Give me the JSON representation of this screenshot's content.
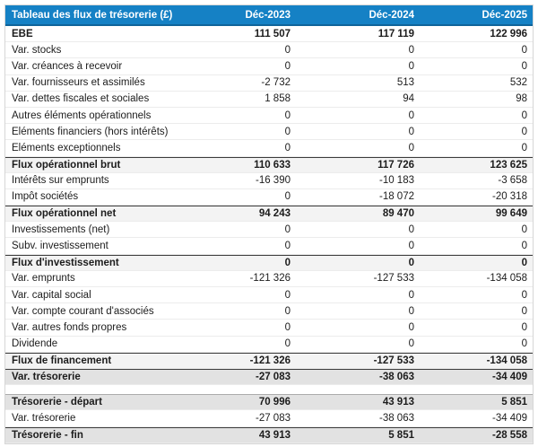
{
  "table": {
    "title": "Tableau des flux de trésorerie (£)",
    "columns": [
      "Déc-2023",
      "Déc-2024",
      "Déc-2025"
    ],
    "rows": [
      {
        "label": "EBE",
        "values": [
          "111 507",
          "117 119",
          "122 996"
        ],
        "style": "bold"
      },
      {
        "label": "Var. stocks",
        "values": [
          "0",
          "0",
          "0"
        ],
        "style": "normal"
      },
      {
        "label": "Var. créances à recevoir",
        "values": [
          "0",
          "0",
          "0"
        ],
        "style": "normal"
      },
      {
        "label": "Var. fournisseurs et assimilés",
        "values": [
          "-2 732",
          "513",
          "532"
        ],
        "style": "normal"
      },
      {
        "label": "Var. dettes fiscales et sociales",
        "values": [
          "1 858",
          "94",
          "98"
        ],
        "style": "normal"
      },
      {
        "label": "Autres éléments opérationnels",
        "values": [
          "0",
          "0",
          "0"
        ],
        "style": "normal"
      },
      {
        "label": "Eléments financiers (hors intérêts)",
        "values": [
          "0",
          "0",
          "0"
        ],
        "style": "normal"
      },
      {
        "label": "Eléments exceptionnels",
        "values": [
          "0",
          "0",
          "0"
        ],
        "style": "normal"
      },
      {
        "label": "Flux opérationnel brut",
        "values": [
          "110 633",
          "117 726",
          "123 625"
        ],
        "style": "subtotal"
      },
      {
        "label": "Intérêts sur emprunts",
        "values": [
          "-16 390",
          "-10 183",
          "-3 658"
        ],
        "style": "normal"
      },
      {
        "label": "Impôt sociétés",
        "values": [
          "0",
          "-18 072",
          "-20 318"
        ],
        "style": "normal"
      },
      {
        "label": "Flux opérationnel net",
        "values": [
          "94 243",
          "89 470",
          "99 649"
        ],
        "style": "subtotal"
      },
      {
        "label": "Investissements (net)",
        "values": [
          "0",
          "0",
          "0"
        ],
        "style": "normal"
      },
      {
        "label": "Subv. investissement",
        "values": [
          "0",
          "0",
          "0"
        ],
        "style": "normal"
      },
      {
        "label": "Flux d'investissement",
        "values": [
          "0",
          "0",
          "0"
        ],
        "style": "subtotal"
      },
      {
        "label": "Var. emprunts",
        "values": [
          "-121 326",
          "-127 533",
          "-134 058"
        ],
        "style": "normal"
      },
      {
        "label": "Var. capital social",
        "values": [
          "0",
          "0",
          "0"
        ],
        "style": "normal"
      },
      {
        "label": "Var. compte courant d'associés",
        "values": [
          "0",
          "0",
          "0"
        ],
        "style": "normal"
      },
      {
        "label": "Var. autres fonds propres",
        "values": [
          "0",
          "0",
          "0"
        ],
        "style": "normal"
      },
      {
        "label": "Dividende",
        "values": [
          "0",
          "0",
          "0"
        ],
        "style": "normal"
      },
      {
        "label": "Flux de financement",
        "values": [
          "-121 326",
          "-127 533",
          "-134 058"
        ],
        "style": "subtotal"
      },
      {
        "label": "Var. trésorerie",
        "values": [
          "-27 083",
          "-38 063",
          "-34 409"
        ],
        "style": "total"
      },
      {
        "label": "",
        "values": [
          "",
          "",
          ""
        ],
        "style": "spacer"
      },
      {
        "label": "Trésorerie - départ",
        "values": [
          "70 996",
          "43 913",
          "5 851"
        ],
        "style": "total-soft"
      },
      {
        "label": "Var. trésorerie",
        "values": [
          "-27 083",
          "-38 063",
          "-34 409"
        ],
        "style": "normal"
      },
      {
        "label": "Trésorerie - fin",
        "values": [
          "43 913",
          "5 851",
          "-28 558"
        ],
        "style": "total"
      }
    ]
  },
  "colors": {
    "header_bg": "#1581c5",
    "header_edge": "#0f649b",
    "subtotal_bg": "#f3f3f3",
    "total_bg": "#e2e2e2",
    "dark_border": "#3c3c3c",
    "row_border": "#ececec",
    "outer_border": "#d6d6d6",
    "text": "#1c1c1c",
    "header_text": "#ffffff"
  }
}
